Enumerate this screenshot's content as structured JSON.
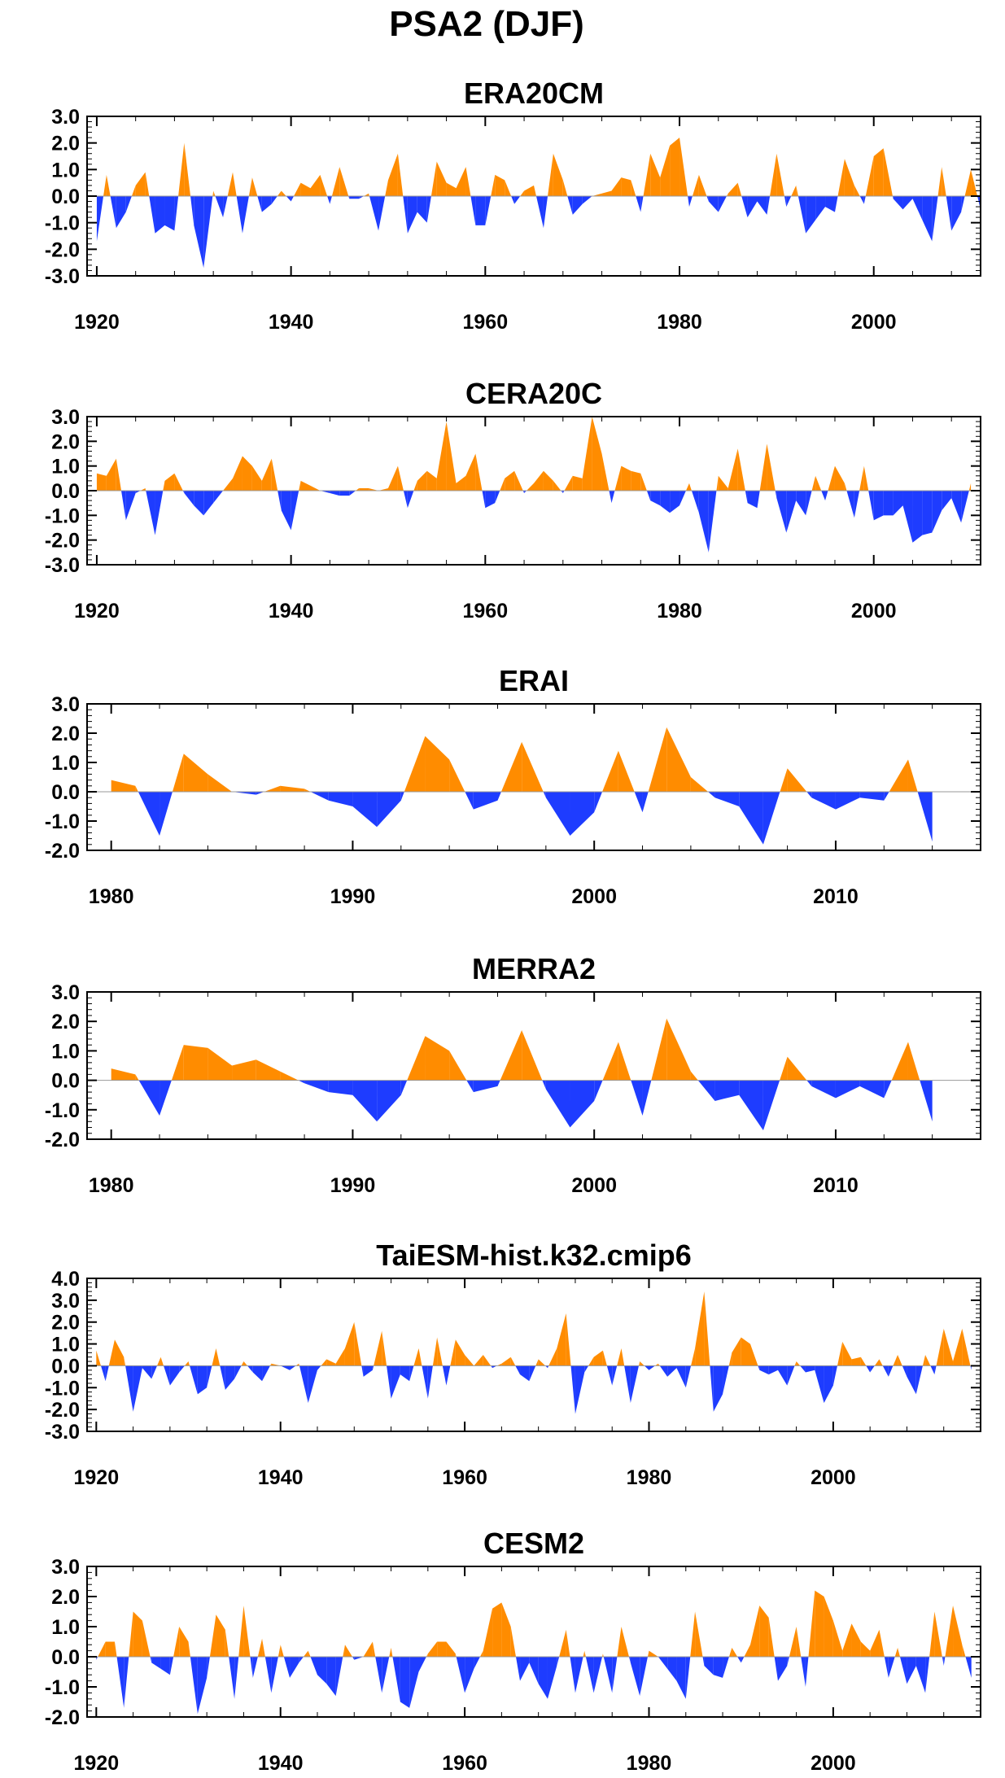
{
  "figure": {
    "title": "PSA2 (DJF)",
    "colors": {
      "positive": "#ff8c00",
      "negative": "#1e3cff",
      "axis": "#000000"
    }
  },
  "chart_data": [
    {
      "type": "area",
      "title": "ERA20CM",
      "xlabel": "",
      "ylabel": "",
      "xlim": [
        1919,
        2011
      ],
      "ylim": [
        -3,
        3
      ],
      "xticks": [
        1920,
        1940,
        1960,
        1980,
        2000
      ],
      "xtick_labels": [
        "1920",
        "1940",
        "1960",
        "1980",
        "2000"
      ],
      "yticks": [
        -3,
        -2,
        -1,
        0,
        1,
        2,
        3
      ],
      "ytick_labels": [
        "-3.0",
        "-2.0",
        "-1.0",
        "0.0",
        "1.0",
        "2.0",
        "3.0"
      ],
      "grid": false,
      "x_start": 1920,
      "values": [
        -1.7,
        0.8,
        -1.2,
        -0.6,
        0.4,
        0.9,
        -1.4,
        -1.1,
        -1.3,
        2.0,
        -1.1,
        -2.7,
        0.2,
        -0.8,
        0.9,
        -1.4,
        0.7,
        -0.6,
        -0.3,
        0.2,
        -0.2,
        0.5,
        0.3,
        0.8,
        -0.3,
        1.1,
        -0.1,
        -0.1,
        0.1,
        -1.3,
        0.6,
        1.6,
        -1.4,
        -0.6,
        -1.0,
        1.3,
        0.5,
        0.3,
        1.1,
        -1.1,
        -1.1,
        0.8,
        0.6,
        -0.3,
        0.2,
        0.4,
        -1.2,
        1.6,
        0.6,
        -0.7,
        -0.3,
        0.0,
        0.1,
        0.2,
        0.7,
        0.6,
        -0.6,
        1.6,
        0.7,
        1.9,
        2.2,
        -0.4,
        0.8,
        -0.2,
        -0.6,
        0.1,
        0.5,
        -0.8,
        -0.2,
        -0.7,
        1.6,
        -0.4,
        0.4,
        -1.4,
        -0.9,
        -0.4,
        -0.6,
        1.4,
        0.4,
        -0.3,
        1.5,
        1.8,
        -0.1,
        -0.5,
        -0.1,
        -0.9,
        -1.7,
        1.1,
        -1.3,
        -0.6,
        1.0,
        -0.5
      ]
    },
    {
      "type": "area",
      "title": "CERA20C",
      "xlabel": "",
      "ylabel": "",
      "xlim": [
        1919,
        2011
      ],
      "ylim": [
        -3,
        3
      ],
      "xticks": [
        1920,
        1940,
        1960,
        1980,
        2000
      ],
      "xtick_labels": [
        "1920",
        "1940",
        "1960",
        "1980",
        "2000"
      ],
      "yticks": [
        -3,
        -2,
        -1,
        0,
        1,
        2,
        3
      ],
      "ytick_labels": [
        "-3.0",
        "-2.0",
        "-1.0",
        "0.0",
        "1.0",
        "2.0",
        "3.0"
      ],
      "grid": false,
      "x_start": 1920,
      "values": [
        0.7,
        0.6,
        1.3,
        -1.2,
        -0.1,
        0.1,
        -1.8,
        0.4,
        0.7,
        -0.1,
        -0.6,
        -1.0,
        -0.5,
        0.0,
        0.5,
        1.4,
        1.0,
        0.4,
        1.3,
        -0.8,
        -1.6,
        0.4,
        0.2,
        0.0,
        -0.1,
        -0.2,
        -0.2,
        0.1,
        0.1,
        0.0,
        0.1,
        1.0,
        -0.7,
        0.4,
        0.8,
        0.5,
        2.8,
        0.3,
        0.6,
        1.5,
        -0.7,
        -0.5,
        0.5,
        0.8,
        -0.1,
        0.3,
        0.8,
        0.4,
        -0.1,
        0.6,
        0.5,
        3.0,
        1.5,
        -0.5,
        1.0,
        0.8,
        0.7,
        -0.4,
        -0.6,
        -0.9,
        -0.6,
        0.3,
        -0.9,
        -2.5,
        0.6,
        0.1,
        1.7,
        -0.5,
        -0.7,
        1.9,
        -0.3,
        -1.7,
        -0.4,
        -1.0,
        0.6,
        -0.4,
        1.0,
        0.3,
        -1.1,
        1.0,
        -1.2,
        -1.0,
        -1.0,
        -0.6,
        -2.1,
        -1.8,
        -1.7,
        -0.8,
        -0.3,
        -1.3,
        0.3
      ]
    },
    {
      "type": "area",
      "title": "ERAI",
      "xlabel": "",
      "ylabel": "",
      "xlim": [
        1979,
        2016
      ],
      "ylim": [
        -2,
        3
      ],
      "xticks": [
        1980,
        1990,
        2000,
        2010
      ],
      "xtick_labels": [
        "1980",
        "1990",
        "2000",
        "2010"
      ],
      "yticks": [
        -2,
        -1,
        0,
        1,
        2,
        3
      ],
      "ytick_labels": [
        "-2.0",
        "-1.0",
        "0.0",
        "1.0",
        "2.0",
        "3.0"
      ],
      "grid": false,
      "x_start": 1980,
      "values": [
        0.4,
        0.2,
        -1.5,
        1.3,
        0.6,
        0.0,
        -0.1,
        0.2,
        0.1,
        -0.3,
        -0.5,
        -1.2,
        -0.3,
        1.9,
        1.1,
        -0.6,
        -0.3,
        1.7,
        -0.2,
        -1.5,
        -0.7,
        1.4,
        -0.7,
        2.2,
        0.5,
        -0.2,
        -0.5,
        -1.8,
        0.8,
        -0.2,
        -0.6,
        -0.2,
        -0.3,
        1.1,
        -1.7
      ]
    },
    {
      "type": "area",
      "title": "MERRA2",
      "xlabel": "",
      "ylabel": "",
      "xlim": [
        1979,
        2016
      ],
      "ylim": [
        -2,
        3
      ],
      "xticks": [
        1980,
        1990,
        2000,
        2010
      ],
      "xtick_labels": [
        "1980",
        "1990",
        "2000",
        "2010"
      ],
      "yticks": [
        -2,
        -1,
        0,
        1,
        2,
        3
      ],
      "ytick_labels": [
        "-2.0",
        "-1.0",
        "0.0",
        "1.0",
        "2.0",
        "3.0"
      ],
      "grid": false,
      "x_start": 1980,
      "values": [
        0.4,
        0.2,
        -1.2,
        1.2,
        1.1,
        0.5,
        0.7,
        0.3,
        -0.1,
        -0.4,
        -0.5,
        -1.4,
        -0.5,
        1.5,
        1.0,
        -0.4,
        -0.2,
        1.7,
        -0.3,
        -1.6,
        -0.7,
        1.3,
        -1.2,
        2.1,
        0.3,
        -0.7,
        -0.5,
        -1.7,
        0.8,
        -0.2,
        -0.6,
        -0.2,
        -0.6,
        1.3,
        -1.4
      ]
    },
    {
      "type": "area",
      "title": "TaiESM-hist.k32.cmip6",
      "xlabel": "",
      "ylabel": "",
      "xlim": [
        1919,
        2016
      ],
      "ylim": [
        -3,
        4
      ],
      "xticks": [
        1920,
        1940,
        1960,
        1980,
        2000
      ],
      "xtick_labels": [
        "1920",
        "1940",
        "1960",
        "1980",
        "2000"
      ],
      "yticks": [
        -3,
        -2,
        -1,
        0,
        1,
        2,
        3,
        4
      ],
      "ytick_labels": [
        "-3.0",
        "-2.0",
        "-1.0",
        "0.0",
        "1.0",
        "2.0",
        "3.0",
        "4.0"
      ],
      "grid": false,
      "x_start": 1920,
      "values": [
        0.7,
        -0.7,
        1.2,
        0.4,
        -2.1,
        -0.1,
        -0.6,
        0.4,
        -0.9,
        -0.3,
        0.2,
        -1.3,
        -1.0,
        0.8,
        -1.1,
        -0.6,
        0.2,
        -0.3,
        -0.7,
        0.1,
        0.0,
        -0.2,
        0.1,
        -1.7,
        -0.2,
        0.3,
        0.1,
        0.8,
        2.0,
        -0.5,
        -0.2,
        1.6,
        -1.5,
        -0.4,
        -0.7,
        0.8,
        -1.5,
        1.3,
        -0.9,
        1.2,
        0.5,
        0.0,
        0.5,
        -0.1,
        0.1,
        0.4,
        -0.4,
        -0.7,
        0.3,
        -0.1,
        0.8,
        2.4,
        -2.2,
        -0.3,
        0.4,
        0.7,
        -0.9,
        0.8,
        -1.7,
        0.2,
        -0.2,
        0.1,
        -0.5,
        -0.1,
        -1.0,
        0.8,
        3.4,
        -2.1,
        -1.3,
        0.6,
        1.3,
        1.0,
        -0.2,
        -0.4,
        -0.2,
        -0.9,
        0.2,
        -0.3,
        -0.2,
        -1.7,
        -0.9,
        1.1,
        0.3,
        0.4,
        -0.3,
        0.3,
        -0.5,
        0.5,
        -0.5,
        -1.3,
        0.5,
        -0.4,
        1.7,
        0.2,
        1.7,
        -0.2
      ]
    },
    {
      "type": "area",
      "title": "CESM2",
      "xlabel": "",
      "ylabel": "",
      "xlim": [
        1919,
        2016
      ],
      "ylim": [
        -2,
        3
      ],
      "xticks": [
        1920,
        1940,
        1960,
        1980,
        2000
      ],
      "xtick_labels": [
        "1920",
        "1940",
        "1960",
        "1980",
        "2000"
      ],
      "yticks": [
        -2,
        -1,
        0,
        1,
        2,
        3
      ],
      "ytick_labels": [
        "-2.0",
        "-1.0",
        "0.0",
        "1.0",
        "2.0",
        "3.0"
      ],
      "grid": false,
      "x_start": 1920,
      "values": [
        -0.1,
        0.5,
        0.5,
        -1.7,
        1.5,
        1.2,
        -0.2,
        -0.4,
        -0.6,
        1.0,
        0.5,
        -1.9,
        -0.7,
        1.4,
        0.9,
        -1.4,
        1.7,
        -0.7,
        0.6,
        -1.2,
        0.4,
        -0.7,
        -0.2,
        0.2,
        -0.6,
        -0.9,
        -1.3,
        0.4,
        -0.1,
        0.0,
        0.5,
        -1.2,
        0.3,
        -1.5,
        -1.7,
        -0.5,
        0.1,
        0.5,
        0.5,
        0.1,
        -1.2,
        -0.4,
        0.2,
        1.6,
        1.8,
        1.0,
        -0.8,
        -0.2,
        -0.9,
        -1.4,
        -0.3,
        0.9,
        -1.2,
        0.2,
        -1.2,
        0.1,
        -1.2,
        1.0,
        -0.2,
        -1.3,
        0.2,
        0.0,
        -0.4,
        -0.8,
        -1.4,
        1.5,
        -0.3,
        -0.6,
        -0.7,
        0.3,
        -0.2,
        0.4,
        1.7,
        1.3,
        -0.8,
        -0.3,
        1.0,
        -1.0,
        2.2,
        2.0,
        1.2,
        0.2,
        1.1,
        0.5,
        0.2,
        0.9,
        -0.7,
        0.3,
        -0.9,
        -0.3,
        -1.2,
        1.5,
        -0.3,
        1.7,
        0.4,
        -0.7
      ]
    }
  ]
}
